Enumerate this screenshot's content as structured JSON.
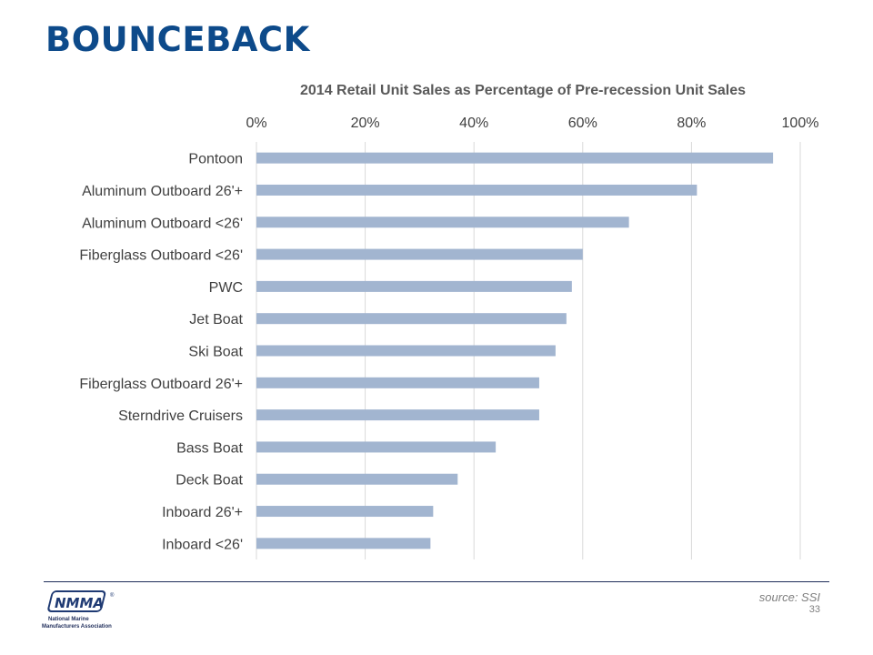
{
  "slide": {
    "title": "BOUNCEBACK",
    "source": "source: SSI",
    "page_number": "33"
  },
  "logo": {
    "wordmark": "NMMA",
    "registered": "®",
    "line1": "National Marine",
    "line2": "Manufacturers Association"
  },
  "colors": {
    "title": "#0d4a8a",
    "bar": "#a2b5d0",
    "grid": "#d9d9d9",
    "logo": "#1f3a73"
  },
  "chart_data": {
    "type": "bar",
    "orientation": "horizontal",
    "title": "2014 Retail Unit Sales as Percentage of Pre-recession Unit Sales",
    "xlim": [
      0,
      100
    ],
    "xticks": [
      0,
      20,
      40,
      60,
      80,
      100
    ],
    "xtick_labels": [
      "0%",
      "20%",
      "40%",
      "60%",
      "80%",
      "100%"
    ],
    "x_axis_position": "top",
    "grid": true,
    "categories": [
      "Pontoon",
      "Aluminum Outboard 26'+",
      "Aluminum Outboard <26'",
      "Fiberglass Outboard <26'",
      "PWC",
      "Jet Boat",
      "Ski Boat",
      "Fiberglass Outboard 26'+",
      "Sterndrive Cruisers",
      "Bass Boat",
      "Deck Boat",
      "Inboard 26'+",
      "Inboard <26'"
    ],
    "values": [
      95,
      81,
      68.5,
      60,
      58,
      57,
      55,
      52,
      52,
      44,
      37,
      32.5,
      32
    ]
  }
}
